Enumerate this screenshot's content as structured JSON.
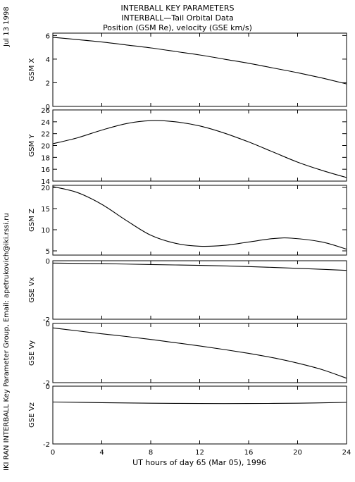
{
  "header": {
    "title_line1": "INTERBALL KEY PARAMETERS",
    "title_line2": "INTERBALL—Tail Orbital Data",
    "title_line3": "Position (GSM Re), velocity (GSE km/s)"
  },
  "side": {
    "date": "Jul 13 1998",
    "credit": "IKI RAN INTERBALL Key Parameter Group, Email: apetrukovich@iki.rssi.ru"
  },
  "chart_data": {
    "type": "line",
    "x_label": "UT hours of day  65 (Mar 05), 1996",
    "x_ticks": [
      "0",
      "4",
      "8",
      "12",
      "16",
      "20",
      "24"
    ],
    "x_range": [
      0,
      24
    ],
    "panels": [
      {
        "name": "GSM X",
        "ylim": [
          0,
          6.2
        ],
        "y_ticks": [
          "0",
          "2",
          "4",
          "6"
        ],
        "x": [
          0,
          2,
          4,
          6,
          8,
          10,
          12,
          14,
          16,
          18,
          20,
          22,
          24
        ],
        "y": [
          5.85,
          5.65,
          5.45,
          5.2,
          4.95,
          4.65,
          4.35,
          4.0,
          3.65,
          3.25,
          2.85,
          2.4,
          1.9
        ]
      },
      {
        "name": "GSM Y",
        "ylim": [
          14,
          26
        ],
        "y_ticks": [
          "14",
          "16",
          "18",
          "20",
          "22",
          "24",
          "26"
        ],
        "x": [
          0,
          2,
          4,
          6,
          8,
          10,
          12,
          14,
          16,
          18,
          20,
          22,
          24
        ],
        "y": [
          20.3,
          21.3,
          22.6,
          23.7,
          24.2,
          24.0,
          23.3,
          22.1,
          20.6,
          18.9,
          17.2,
          15.8,
          14.6
        ]
      },
      {
        "name": "GSM Z",
        "ylim": [
          4,
          20.5
        ],
        "y_ticks": [
          "5",
          "10",
          "15",
          "20"
        ],
        "x": [
          0,
          2,
          4,
          6,
          8,
          10,
          12,
          14,
          16,
          18,
          19.5,
          22,
          24
        ],
        "y": [
          20.2,
          18.8,
          16.0,
          12.2,
          8.7,
          6.8,
          6.1,
          6.3,
          7.1,
          7.9,
          8.0,
          7.1,
          5.4
        ]
      },
      {
        "name": "GSE Vx",
        "ylim": [
          -2,
          0
        ],
        "y_ticks": [
          "0",
          "-2"
        ],
        "x": [
          0,
          4,
          8,
          12,
          16,
          20,
          24
        ],
        "y": [
          -0.08,
          -0.1,
          -0.13,
          -0.16,
          -0.2,
          -0.26,
          -0.33
        ]
      },
      {
        "name": "GSE Vy",
        "ylim": [
          -2,
          0
        ],
        "y_ticks": [
          "0",
          "-2"
        ],
        "x": [
          0,
          2,
          4,
          6,
          8,
          10,
          12,
          14,
          16,
          18,
          20,
          22,
          24
        ],
        "y": [
          -0.15,
          -0.25,
          -0.35,
          -0.44,
          -0.54,
          -0.65,
          -0.76,
          -0.88,
          -1.01,
          -1.16,
          -1.34,
          -1.56,
          -1.85
        ]
      },
      {
        "name": "GSE Vz",
        "ylim": [
          -2,
          0
        ],
        "y_ticks": [
          "0",
          "-2"
        ],
        "x": [
          0,
          4,
          8,
          12,
          16,
          20,
          24
        ],
        "y": [
          -0.55,
          -0.57,
          -0.59,
          -0.6,
          -0.6,
          -0.59,
          -0.56
        ]
      }
    ]
  }
}
